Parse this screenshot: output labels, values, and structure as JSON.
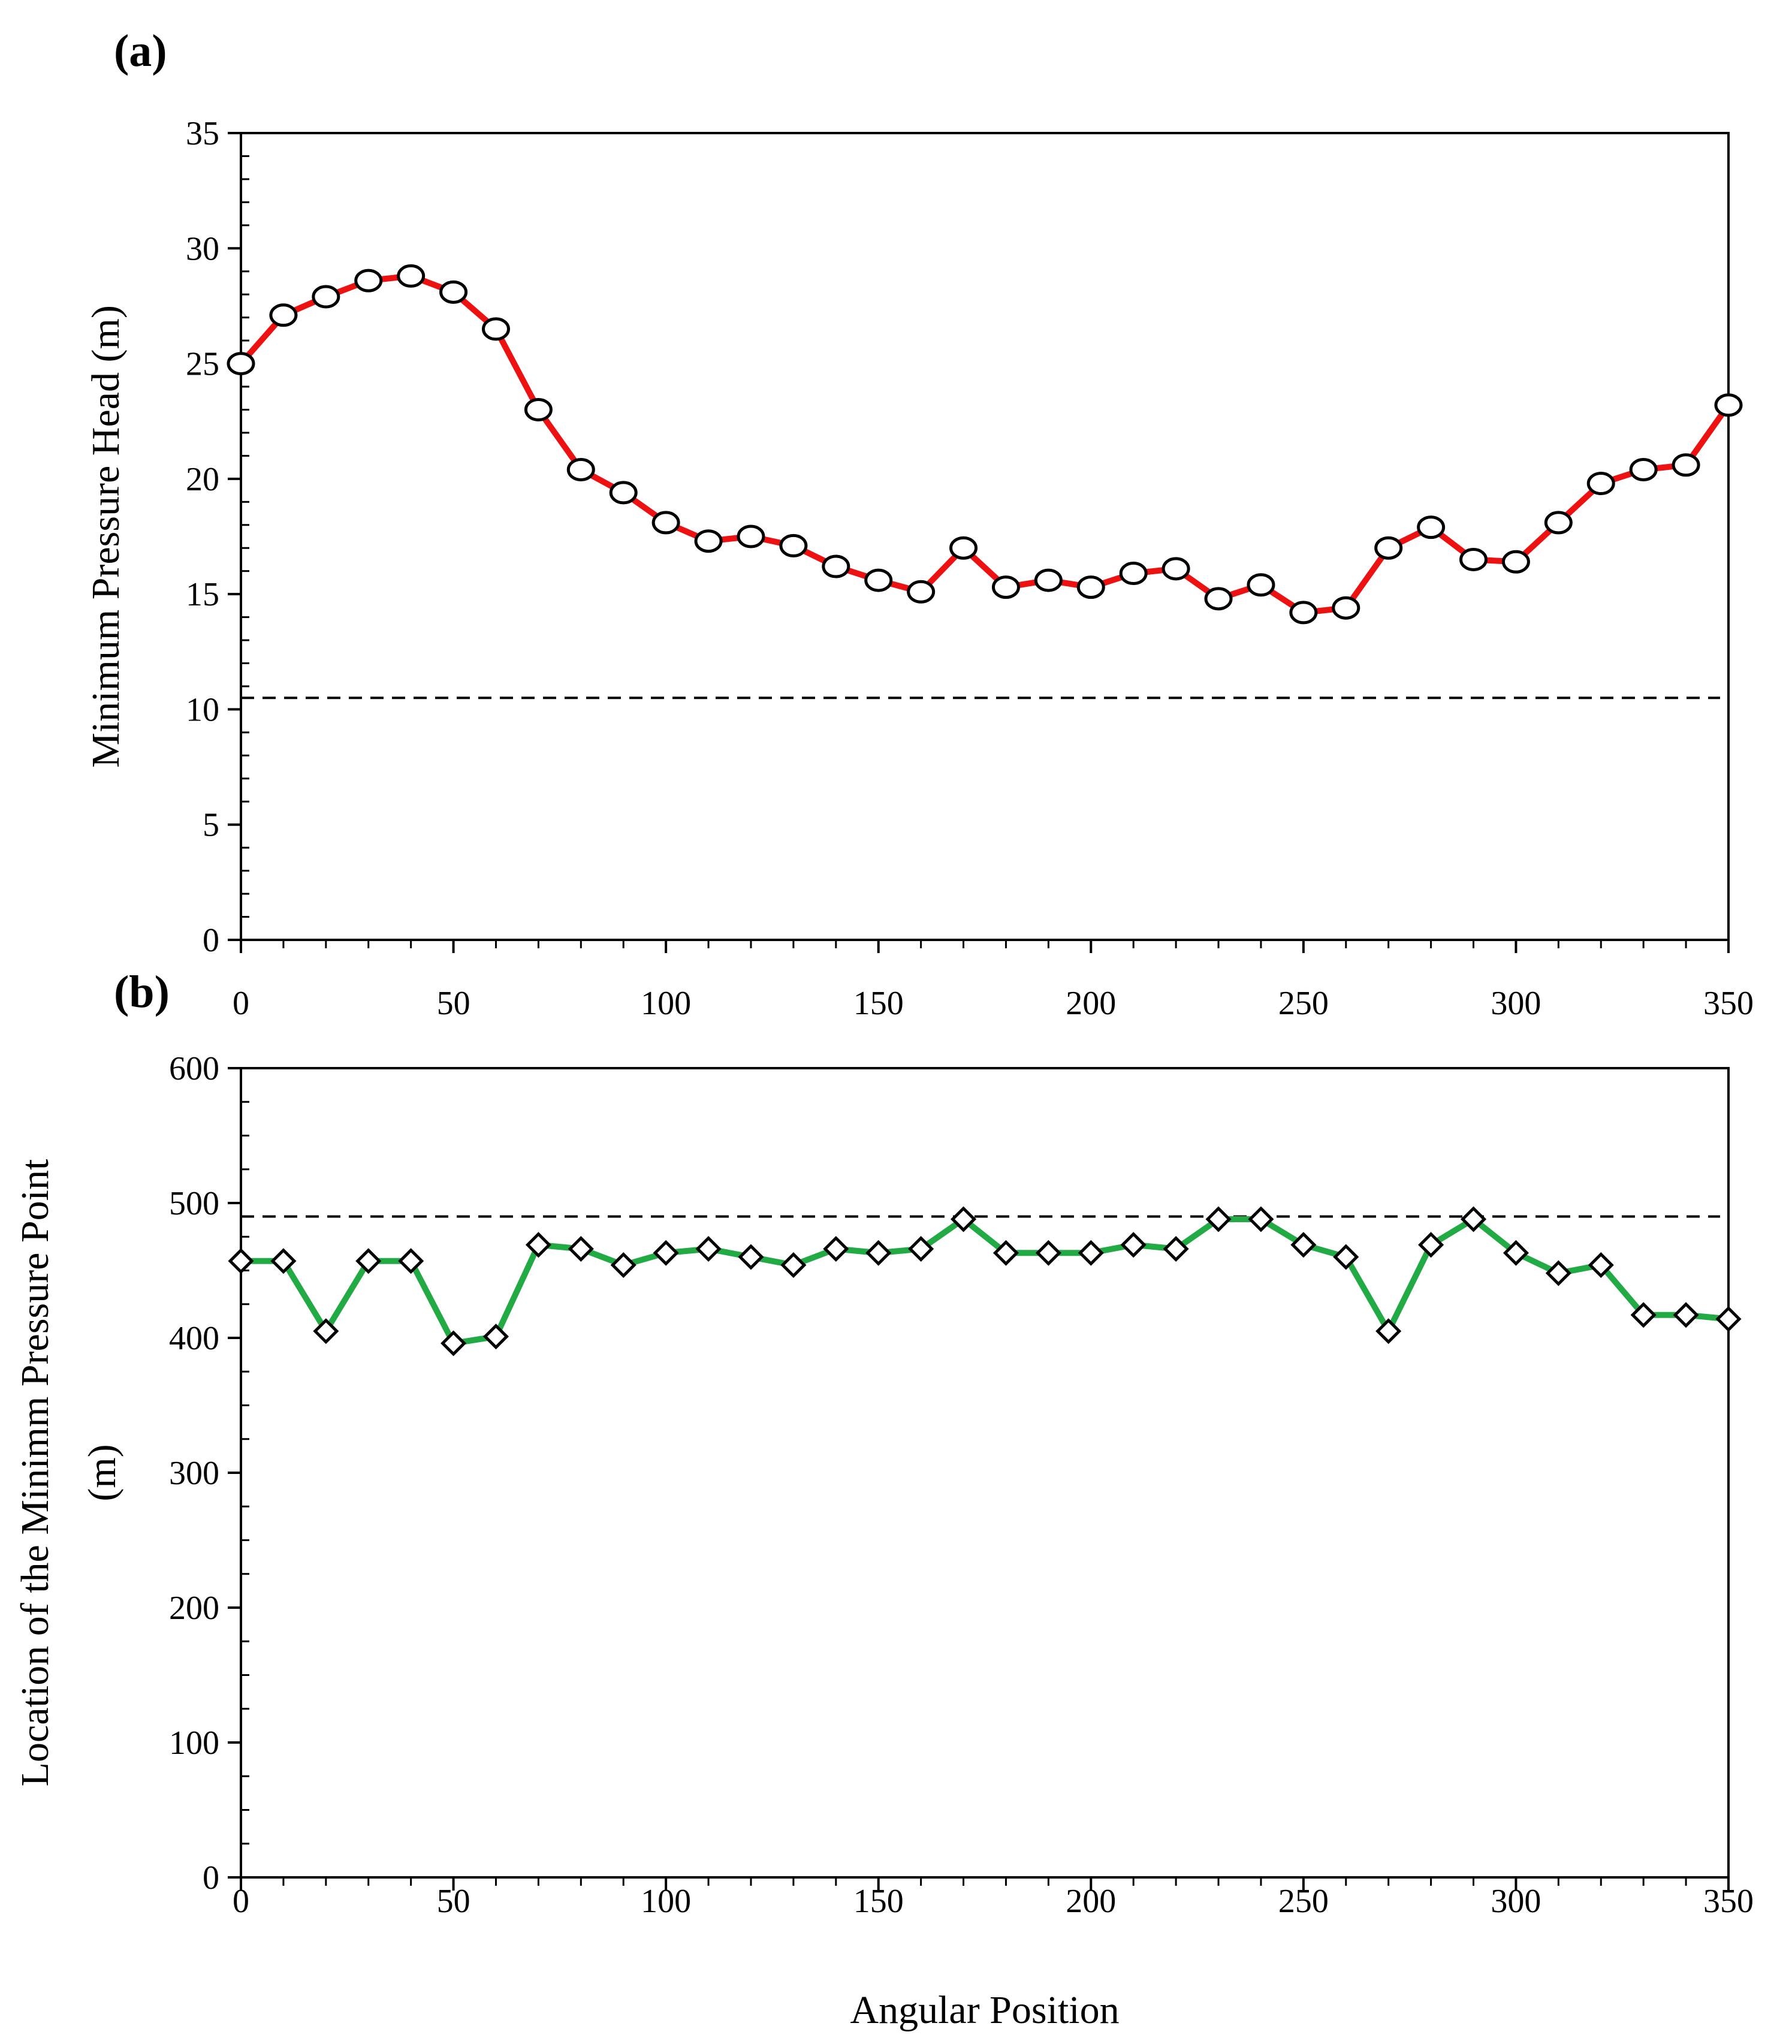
{
  "chart_data": [
    {
      "type": "line",
      "panel_label": "(a)",
      "title": "",
      "xlabel": "",
      "ylabel": "Minimum Pressure Head (m)",
      "xlim": [
        0,
        350
      ],
      "ylim": [
        0,
        35
      ],
      "xticks": [
        0,
        50,
        100,
        150,
        200,
        250,
        300,
        350
      ],
      "yticks": [
        0,
        5,
        10,
        15,
        20,
        25,
        30,
        35
      ],
      "grid": false,
      "reference_line": {
        "y": 10.5,
        "style": "dashed",
        "color": "#000000"
      },
      "series": [
        {
          "name": "Minimum Pressure Head",
          "marker": "circle",
          "line_color": "#ee1111",
          "marker_fill": "#ffffff",
          "marker_edge": "#000000",
          "x": [
            0,
            10,
            20,
            30,
            40,
            50,
            60,
            70,
            80,
            90,
            100,
            110,
            120,
            130,
            140,
            150,
            160,
            170,
            180,
            190,
            200,
            210,
            220,
            230,
            240,
            250,
            260,
            270,
            280,
            290,
            300,
            310,
            320,
            330,
            340,
            350
          ],
          "values": [
            25.0,
            27.1,
            27.9,
            28.6,
            28.8,
            28.1,
            26.5,
            23.0,
            20.4,
            19.4,
            18.1,
            17.3,
            17.5,
            17.1,
            16.2,
            15.6,
            15.1,
            17.0,
            15.3,
            15.6,
            15.3,
            15.9,
            16.1,
            14.8,
            15.4,
            14.2,
            14.4,
            17.0,
            17.9,
            16.5,
            16.4,
            18.1,
            19.8,
            20.4,
            20.6,
            23.2
          ]
        }
      ]
    },
    {
      "type": "line",
      "panel_label": "(b)",
      "title": "",
      "xlabel": "Angular Position",
      "ylabel_line1": "Location of the Minimm Pressure Point",
      "ylabel_line2": "(m)",
      "xlim": [
        0,
        350
      ],
      "ylim": [
        0,
        600
      ],
      "xticks": [
        0,
        50,
        100,
        150,
        200,
        250,
        300,
        350
      ],
      "yticks": [
        0,
        100,
        200,
        300,
        400,
        500,
        600
      ],
      "grid": false,
      "reference_line": {
        "y": 490,
        "style": "dashed",
        "color": "#000000"
      },
      "series": [
        {
          "name": "Location of the Minimum Pressure Point",
          "marker": "diamond",
          "line_color": "#22aa44",
          "marker_fill": "#ffffff",
          "marker_edge": "#000000",
          "x": [
            0,
            10,
            20,
            30,
            40,
            50,
            60,
            70,
            80,
            90,
            100,
            110,
            120,
            130,
            140,
            150,
            160,
            170,
            180,
            190,
            200,
            210,
            220,
            230,
            240,
            250,
            260,
            270,
            280,
            290,
            300,
            310,
            320,
            330,
            340,
            350
          ],
          "values": [
            457,
            457,
            405,
            457,
            457,
            396,
            401,
            469,
            466,
            454,
            463,
            466,
            460,
            454,
            466,
            463,
            466,
            488,
            463,
            463,
            463,
            469,
            466,
            488,
            488,
            469,
            460,
            405,
            469,
            488,
            463,
            448,
            454,
            417,
            417,
            414
          ]
        }
      ]
    }
  ]
}
